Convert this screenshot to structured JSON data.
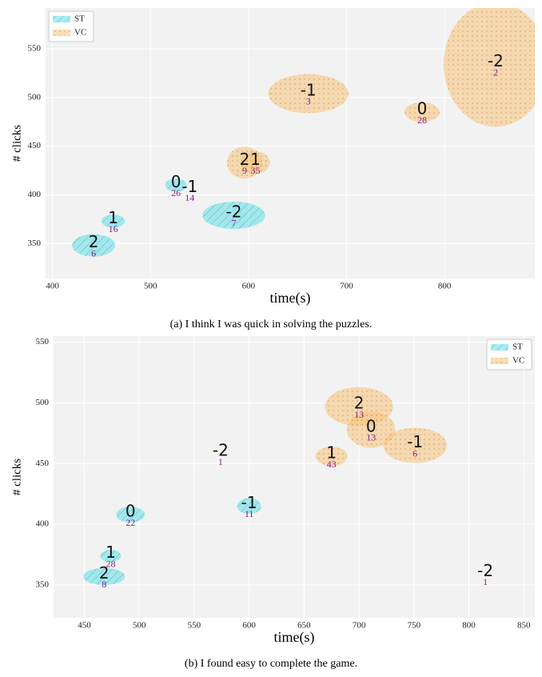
{
  "chart_data": [
    {
      "type": "ellipse-scatter",
      "xlabel": "time(s)",
      "ylabel": "# clicks",
      "caption": "(a) I think I was quick in solving the puzzles.",
      "xlim": [
        393,
        892
      ],
      "ylim": [
        314,
        592
      ],
      "xticks": [
        400,
        500,
        600,
        700,
        800
      ],
      "yticks": [
        350,
        400,
        450,
        500,
        550
      ],
      "grid": true,
      "legend": "upper left",
      "series": [
        {
          "name": "ST",
          "color": "#5ee0ea",
          "x": [
            442,
            462,
            526,
            540,
            585
          ],
          "values": [
            348,
            373,
            410,
            405,
            379
          ],
          "xerr": [
            22,
            12,
            11,
            0,
            32
          ],
          "yerr": [
            11.5,
            6.6,
            6.6,
            0,
            14
          ],
          "scores": [
            2,
            1,
            0,
            -1,
            -2
          ],
          "counts": [
            6,
            16,
            26,
            14,
            7
          ]
        },
        {
          "name": "VC",
          "color": "#f7c27a",
          "x": [
            596,
            607,
            661,
            777,
            852
          ],
          "values": [
            433,
            433,
            504,
            485,
            534
          ],
          "xerr": [
            18,
            15,
            41,
            18,
            53
          ],
          "yerr": [
            16.5,
            11.5,
            20,
            10,
            64
          ],
          "scores": [
            2,
            1,
            -1,
            0,
            -2
          ],
          "counts": [
            9,
            35,
            3,
            28,
            2
          ]
        }
      ]
    },
    {
      "type": "ellipse-scatter",
      "xlabel": "time(s)",
      "ylabel": "# clicks",
      "caption": "(b) I found easy to complete the game.",
      "xlim": [
        422,
        860
      ],
      "ylim": [
        323,
        555
      ],
      "xticks": [
        450,
        500,
        550,
        600,
        650,
        700,
        750,
        800,
        850
      ],
      "yticks": [
        350,
        400,
        450,
        500,
        550
      ],
      "grid": true,
      "legend": "upper right",
      "series": [
        {
          "name": "ST",
          "color": "#5ee0ea",
          "x": [
            468,
            474,
            492,
            600,
            574
          ],
          "values": [
            357,
            374,
            408,
            415,
            458
          ],
          "xerr": [
            19,
            9.5,
            13,
            11,
            0
          ],
          "yerr": [
            7,
            5,
            6.5,
            6.5,
            0
          ],
          "scores": [
            2,
            1,
            0,
            -1,
            -2
          ],
          "counts": [
            8,
            28,
            22,
            11,
            1
          ]
        },
        {
          "name": "VC",
          "color": "#f7c27a",
          "x": [
            700,
            675,
            711,
            751,
            815
          ],
          "values": [
            497,
            456,
            478,
            465,
            359
          ],
          "xerr": [
            31,
            14.5,
            22,
            29,
            0
          ],
          "yerr": [
            16,
            8,
            15,
            14.5,
            0
          ],
          "scores": [
            2,
            1,
            0,
            -1,
            -2
          ],
          "counts": [
            13,
            43,
            13,
            6,
            1
          ]
        }
      ]
    }
  ]
}
